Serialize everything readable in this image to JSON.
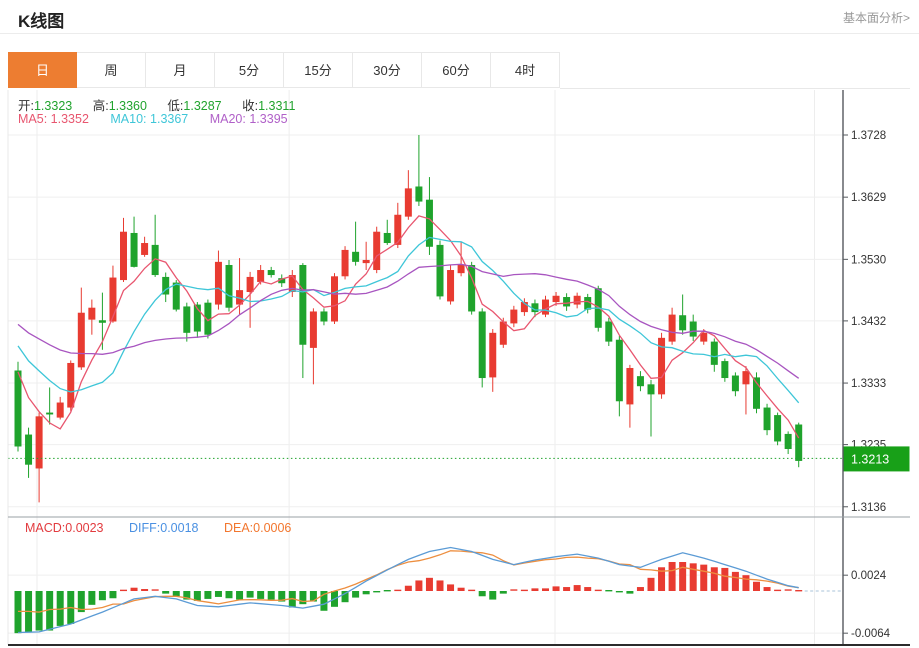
{
  "header": {
    "title": "K线图",
    "link_label": "基本面分析>"
  },
  "tabs": [
    {
      "label": "日",
      "active": true
    },
    {
      "label": "周",
      "active": false
    },
    {
      "label": "月",
      "active": false
    },
    {
      "label": "5分",
      "active": false
    },
    {
      "label": "15分",
      "active": false
    },
    {
      "label": "30分",
      "active": false
    },
    {
      "label": "60分",
      "active": false
    },
    {
      "label": "4时",
      "active": false
    }
  ],
  "info_bar": {
    "open_label": "开:",
    "open_value": "1.3323",
    "high_label": "高:",
    "high_value": "1.3360",
    "low_label": "低:",
    "low_value": "1.3287",
    "close_label": "收:",
    "close_value": "1.3311"
  },
  "ma_bar": {
    "ma5_label": "MA5:",
    "ma5_value": "1.3352",
    "ma10_label": "MA10:",
    "ma10_value": "1.3367",
    "ma20_label": "MA20:",
    "ma20_value": "1.3395"
  },
  "macd_bar": {
    "macd_label": "MACD:",
    "macd_value": "0.0023",
    "diff_label": "DIFF:",
    "diff_value": "0.0018",
    "dea_label": "DEA:",
    "dea_value": "0.0006"
  },
  "colors": {
    "accent_orange": "#ED7D31",
    "up_red": "#E83B31",
    "down_green": "#1FA32C",
    "ma5_pink": "#E8566F",
    "ma10_cyan": "#3EC6D8",
    "ma20_purple": "#A855C0",
    "diff_blue": "#5B9BD5",
    "dea_orange": "#ED8E3F",
    "price_tag_green": "#18A018",
    "grid": "#efefef",
    "axis_dark": "#55595e"
  },
  "chart_data": {
    "type": "candlestick+macd",
    "title": "K线图 daily candlestick with MA5/MA10/MA20 and MACD",
    "price_axis_labels": [
      "1.3728",
      "1.3629",
      "1.3530",
      "1.3432",
      "1.3333",
      "1.3235",
      "1.3136"
    ],
    "price_axis_values": [
      1.3728,
      1.3629,
      1.353,
      1.3432,
      1.3333,
      1.3235,
      1.3136
    ],
    "current_price_label": "1.3213",
    "current_price": 1.3213,
    "grid_indices": [
      1.8,
      25.7,
      50.9,
      75.5
    ],
    "candles_format": [
      "open",
      "close",
      "high",
      "low"
    ],
    "candles": [
      [
        1.3353,
        1.3232,
        1.3367,
        1.3224
      ],
      [
        1.3251,
        1.3203,
        1.3262,
        1.3182
      ],
      [
        1.3197,
        1.328,
        1.3286,
        1.3143
      ],
      [
        1.3286,
        1.3283,
        1.3326,
        1.3267
      ],
      [
        1.3278,
        1.3302,
        1.3311,
        1.3275
      ],
      [
        1.3294,
        1.3365,
        1.3369,
        1.3288
      ],
      [
        1.3358,
        1.3445,
        1.3485,
        1.3354
      ],
      [
        1.3434,
        1.3453,
        1.3466,
        1.341
      ],
      [
        1.3433,
        1.3429,
        1.3477,
        1.3386
      ],
      [
        1.3431,
        1.3501,
        1.352,
        1.3429
      ],
      [
        1.3497,
        1.3574,
        1.3596,
        1.3494
      ],
      [
        1.3572,
        1.3518,
        1.3598,
        1.3517
      ],
      [
        1.3537,
        1.3556,
        1.3566,
        1.3534
      ],
      [
        1.3553,
        1.3505,
        1.3601,
        1.3502
      ],
      [
        1.3502,
        1.3474,
        1.3509,
        1.3462
      ],
      [
        1.3493,
        1.345,
        1.3497,
        1.3447
      ],
      [
        1.3455,
        1.3413,
        1.3461,
        1.3399
      ],
      [
        1.3458,
        1.3415,
        1.3462,
        1.3405
      ],
      [
        1.3461,
        1.341,
        1.3466,
        1.3404
      ],
      [
        1.3458,
        1.3526,
        1.3544,
        1.345
      ],
      [
        1.3521,
        1.3453,
        1.3529,
        1.3447
      ],
      [
        1.3458,
        1.3481,
        1.3532,
        1.3442
      ],
      [
        1.3478,
        1.3502,
        1.351,
        1.3421
      ],
      [
        1.3494,
        1.3513,
        1.3521,
        1.349
      ],
      [
        1.3513,
        1.3505,
        1.3518,
        1.3501
      ],
      [
        1.35,
        1.3492,
        1.3506,
        1.3486
      ],
      [
        1.3478,
        1.3505,
        1.3513,
        1.347
      ],
      [
        1.3521,
        1.3394,
        1.3524,
        1.3341
      ],
      [
        1.3389,
        1.3447,
        1.3452,
        1.3331
      ],
      [
        1.3447,
        1.3431,
        1.3452,
        1.3425
      ],
      [
        1.3431,
        1.3503,
        1.3508,
        1.3427
      ],
      [
        1.3503,
        1.3545,
        1.3551,
        1.3498
      ],
      [
        1.3542,
        1.3526,
        1.359,
        1.352
      ],
      [
        1.3524,
        1.3529,
        1.3558,
        1.3513
      ],
      [
        1.3513,
        1.3574,
        1.3582,
        1.3508
      ],
      [
        1.3572,
        1.3556,
        1.3593,
        1.3553
      ],
      [
        1.3553,
        1.3601,
        1.362,
        1.3548
      ],
      [
        1.3598,
        1.3643,
        1.3672,
        1.3593
      ],
      [
        1.3646,
        1.3622,
        1.3728,
        1.3615
      ],
      [
        1.3625,
        1.355,
        1.3661,
        1.3537
      ],
      [
        1.3553,
        1.3471,
        1.356,
        1.3466
      ],
      [
        1.3463,
        1.3513,
        1.3521,
        1.3458
      ],
      [
        1.3508,
        1.3521,
        1.3558,
        1.3503
      ],
      [
        1.3521,
        1.3447,
        1.3526,
        1.3442
      ],
      [
        1.3447,
        1.3341,
        1.3452,
        1.3326
      ],
      [
        1.3342,
        1.3413,
        1.3419,
        1.3319
      ],
      [
        1.3394,
        1.3431,
        1.3437,
        1.3389
      ],
      [
        1.3428,
        1.345,
        1.3456,
        1.3422
      ],
      [
        1.3446,
        1.3462,
        1.3468,
        1.344
      ],
      [
        1.346,
        1.3446,
        1.3466,
        1.3438
      ],
      [
        1.3442,
        1.3466,
        1.3472,
        1.3438
      ],
      [
        1.3462,
        1.3472,
        1.3478,
        1.3456
      ],
      [
        1.347,
        1.3455,
        1.3476,
        1.3448
      ],
      [
        1.3458,
        1.3472,
        1.3477,
        1.3452
      ],
      [
        1.347,
        1.345,
        1.3475,
        1.3444
      ],
      [
        1.3484,
        1.3421,
        1.3488,
        1.3415
      ],
      [
        1.3431,
        1.3399,
        1.3437,
        1.3392
      ],
      [
        1.3402,
        1.3304,
        1.3408,
        1.328
      ],
      [
        1.3299,
        1.3357,
        1.3362,
        1.3262
      ],
      [
        1.3344,
        1.3328,
        1.3352,
        1.332
      ],
      [
        1.3331,
        1.3315,
        1.3338,
        1.3248
      ],
      [
        1.3315,
        1.3405,
        1.3413,
        1.3308
      ],
      [
        1.3399,
        1.3442,
        1.3453,
        1.3394
      ],
      [
        1.3441,
        1.3417,
        1.3474,
        1.341
      ],
      [
        1.3431,
        1.3407,
        1.3442,
        1.34
      ],
      [
        1.3399,
        1.3413,
        1.3419,
        1.3394
      ],
      [
        1.3399,
        1.3362,
        1.3404,
        1.3351
      ],
      [
        1.3368,
        1.3341,
        1.3372,
        1.3335
      ],
      [
        1.3345,
        1.332,
        1.335,
        1.3312
      ],
      [
        1.3331,
        1.3352,
        1.336,
        1.3283
      ],
      [
        1.3342,
        1.3292,
        1.335,
        1.3285
      ],
      [
        1.3294,
        1.3258,
        1.33,
        1.325
      ],
      [
        1.3282,
        1.324,
        1.3286,
        1.3234
      ],
      [
        1.3252,
        1.3228,
        1.3256,
        1.322
      ],
      [
        1.3267,
        1.3209,
        1.327,
        1.3199
      ]
    ],
    "ma_windows": [
      5,
      10,
      20
    ],
    "ma_prehistory_closes": [
      1.348,
      1.3475,
      1.3472,
      1.347,
      1.3466,
      1.3462,
      1.346,
      1.3456,
      1.3452,
      1.3448,
      1.3446,
      1.3442,
      1.344,
      1.3436,
      1.343,
      1.342,
      1.3408,
      1.3392,
      1.3372,
      1.335
    ],
    "macd": {
      "axis_labels": [
        "0.0024",
        "-0.0064"
      ],
      "axis_values": [
        0.0024,
        -0.0064
      ],
      "unit": 0.0001,
      "histogram": [
        -64,
        -63,
        -60,
        -60,
        -53,
        -50,
        -32,
        -21,
        -14,
        -11,
        2,
        5,
        3,
        1,
        -4,
        -8,
        -13,
        -15,
        -12,
        -9,
        -11,
        -13,
        -10,
        -12,
        -13,
        -16,
        -25,
        -20,
        -16,
        -30,
        -24,
        -17,
        -10,
        -5,
        -2,
        -1,
        2,
        8,
        16,
        20,
        16,
        10,
        5,
        2,
        -8,
        -13,
        -4,
        1,
        2,
        4,
        4,
        7,
        6,
        9,
        6,
        2,
        -1,
        -2,
        -4,
        6,
        20,
        36,
        44,
        44,
        42,
        40,
        36,
        35,
        29,
        24,
        14,
        6,
        2,
        1,
        0
      ],
      "diff_points": [
        [
          0,
          -63
        ],
        [
          2,
          -62
        ],
        [
          5,
          -50
        ],
        [
          8,
          -32
        ],
        [
          11,
          -12
        ],
        [
          13,
          -8
        ],
        [
          15,
          -12
        ],
        [
          17,
          -22
        ],
        [
          19,
          -24
        ],
        [
          22,
          -18
        ],
        [
          25,
          -22
        ],
        [
          27,
          -26
        ],
        [
          29,
          -20
        ],
        [
          31,
          -4
        ],
        [
          33,
          15
        ],
        [
          35,
          32
        ],
        [
          37,
          48
        ],
        [
          39,
          60
        ],
        [
          41,
          66
        ],
        [
          43,
          60
        ],
        [
          45,
          48
        ],
        [
          47,
          40
        ],
        [
          49,
          47
        ],
        [
          51,
          52
        ],
        [
          53,
          56
        ],
        [
          55,
          50
        ],
        [
          57,
          40
        ],
        [
          59,
          36
        ],
        [
          61,
          48
        ],
        [
          63,
          58
        ],
        [
          65,
          50
        ],
        [
          67,
          40
        ],
        [
          69,
          30
        ],
        [
          71,
          18
        ],
        [
          73,
          8
        ],
        [
          74,
          5
        ]
      ]
    }
  }
}
